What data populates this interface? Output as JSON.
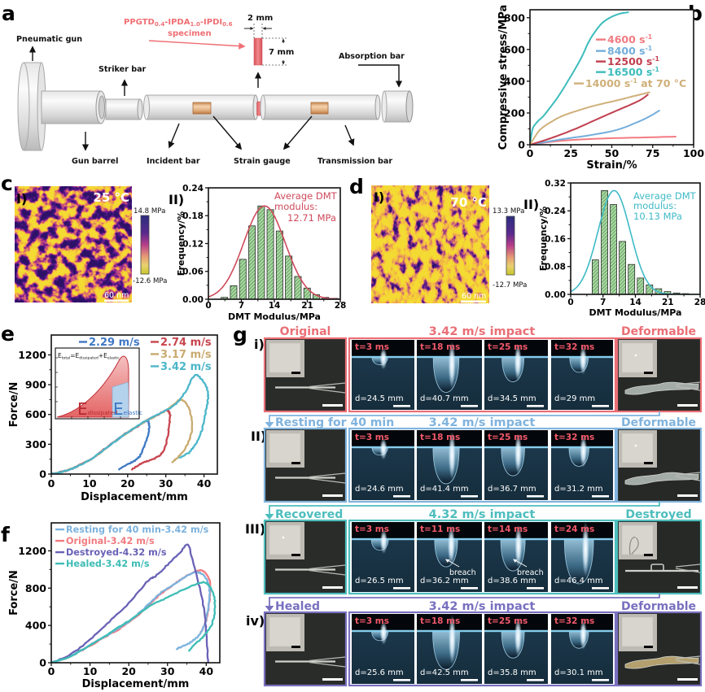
{
  "figure": {
    "panel_letters": {
      "a": "a",
      "b": "b",
      "c": "c",
      "d": "d",
      "e": "e",
      "f": "f",
      "g": "g"
    }
  },
  "panel_a": {
    "specimen_formula": [
      "PPGTD",
      "0.4",
      "-IPDA",
      "1.0",
      "-IPDI",
      "0.6"
    ],
    "specimen_word": "specimen",
    "width_dim": "2 mm",
    "height_dim": "7 mm",
    "labels": {
      "pneumatic_gun": "Pneumatic gun",
      "striker_bar": "Striker bar",
      "absorption_bar": "Absorption bar",
      "gun_barrel": "Gun barrel",
      "incident_bar": "Incident bar",
      "strain_gauge": "Strain gauge",
      "transmission_bar": "Transmission bar"
    },
    "specimen_color": "#ef7373",
    "gauge_color": "#d9a06a"
  },
  "panel_c": {
    "image_label": "I)",
    "temperature": "25 °C",
    "colorbar_max": "14.8 MPa",
    "colorbar_min": "-12.6 MPa",
    "scalebar": "60 nm",
    "hist_label": "II)"
  },
  "panel_d": {
    "image_label": "I)",
    "temperature": "70 °C",
    "colorbar_max": "13.3 MPa",
    "colorbar_min": "-12.7 MPa",
    "scalebar": "60 nm",
    "hist_label": "II)"
  },
  "panel_e": {
    "inset": {
      "equation": [
        "E",
        "total",
        "=E",
        "dissipated",
        "+E",
        "elastic"
      ],
      "dissipated_symbol": "E",
      "dissipated_sub": "dissipated",
      "elastic_symbol": "E",
      "elastic_sub": "elastic",
      "dissipated_color": "#c0323a",
      "elastic_color": "#3b78c4"
    }
  },
  "panel_g": {
    "time_color": "#f4596a",
    "rows": [
      {
        "roman": "i)",
        "color": "#ea6f76",
        "left_title": "Original",
        "center_title": "3.42 m/s impact",
        "right_title": "Deformable",
        "frames": [
          {
            "time": "t=3 ms",
            "depth": "d=24.5 mm",
            "depth_mm": 24.5
          },
          {
            "time": "t=18 ms",
            "depth": "d=40.7 mm",
            "depth_mm": 40.7
          },
          {
            "time": "t=25 ms",
            "depth": "d=34.5 mm",
            "depth_mm": 34.5
          },
          {
            "time": "t=32 ms",
            "depth": "d=29 mm",
            "depth_mm": 29
          }
        ]
      },
      {
        "roman": "II)",
        "color": "#80b3dd",
        "left_title": "Resting for 40 min",
        "center_title": "3.42 m/s impact",
        "right_title": "Deformable",
        "frames": [
          {
            "time": "t=3 ms",
            "depth": "d=24.6 mm",
            "depth_mm": 24.6
          },
          {
            "time": "t=18 ms",
            "depth": "d=41.4 mm",
            "depth_mm": 41.4
          },
          {
            "time": "t=25 ms",
            "depth": "d=36.7 mm",
            "depth_mm": 36.7
          },
          {
            "time": "t=32 ms",
            "depth": "d=31.2 mm",
            "depth_mm": 31.2
          }
        ]
      },
      {
        "roman": "III)",
        "color": "#4dbdbd",
        "left_title": "Recovered",
        "center_title": "4.32 m/s impact",
        "right_title": "Destroyed",
        "frames": [
          {
            "time": "t=3 ms",
            "depth": "d=26.5 mm",
            "depth_mm": 26.5
          },
          {
            "time": "t=11 ms",
            "depth": "d=36.2 mm",
            "depth_mm": 36.2,
            "note": "breach"
          },
          {
            "time": "t=14 ms",
            "depth": "d=38.6 mm",
            "depth_mm": 38.6,
            "note": "breach"
          },
          {
            "time": "t=24 ms",
            "depth": "d=46.4 mm",
            "depth_mm": 46.4
          }
        ]
      },
      {
        "roman": "iv)",
        "color": "#7870bf",
        "left_title": "Healed",
        "center_title": "3.42 m/s impact",
        "right_title": "Deformable",
        "frames": [
          {
            "time": "t=3 ms",
            "depth": "d=25.6 mm",
            "depth_mm": 25.6
          },
          {
            "time": "t=18 ms",
            "depth": "d=42.5 mm",
            "depth_mm": 42.5
          },
          {
            "time": "t=25 ms",
            "depth": "d=35.8 mm",
            "depth_mm": 35.8
          },
          {
            "time": "t=32 ms",
            "depth": "d=30.1 mm",
            "depth_mm": 30.1
          }
        ]
      }
    ]
  },
  "chart_data": [
    {
      "id": "b",
      "type": "line",
      "title": "",
      "xlabel": "Strain/%",
      "ylabel": "Compressive stress/MPa",
      "xlim": [
        0,
        100
      ],
      "ylim": [
        0,
        850
      ],
      "xticks": [
        0,
        25,
        50,
        75,
        100
      ],
      "xticklabels": [
        "0",
        "25",
        "50",
        "75",
        "100"
      ],
      "yticks": [
        0,
        200,
        400,
        600,
        800
      ],
      "yticklabels": [
        "0",
        "200",
        "400",
        "600",
        "800"
      ],
      "grid": false,
      "legend_position": "center-right",
      "series": [
        {
          "name": "4600 s",
          "sup": "-1",
          "suffix": "",
          "color": "#f27b82",
          "x": [
            0,
            19,
            44,
            70,
            89
          ],
          "y": [
            0,
            25,
            39,
            46,
            51
          ]
        },
        {
          "name": "8400 s",
          "sup": "-1",
          "suffix": "",
          "color": "#74aedb",
          "x": [
            0,
            19,
            36,
            53,
            66,
            73,
            79
          ],
          "y": [
            0,
            34,
            59,
            93,
            144,
            178,
            215
          ]
        },
        {
          "name": "12500 s",
          "sup": "-1",
          "suffix": "",
          "color": "#c13f4e",
          "x": [
            0,
            13,
            28,
            41,
            53,
            62,
            68,
            72
          ],
          "y": [
            0,
            42,
            101,
            161,
            215,
            255,
            285,
            315
          ]
        },
        {
          "name": "16500 s",
          "sup": "-1",
          "suffix": "",
          "color": "#3dbcbc",
          "x": [
            0,
            1,
            2,
            5,
            8,
            12,
            16,
            20,
            24,
            28,
            32,
            36,
            40,
            44,
            48,
            52,
            56,
            60
          ],
          "y": [
            0,
            70,
            110,
            150,
            178,
            230,
            285,
            347,
            415,
            485,
            560,
            650,
            715,
            765,
            795,
            815,
            828,
            834
          ]
        },
        {
          "name": "14000 s",
          "sup": "-1",
          "suffix": " at 70 °C",
          "color": "#cfb07a",
          "x": [
            0,
            3,
            6,
            10,
            13,
            19,
            28,
            39,
            53,
            63,
            73
          ],
          "y": [
            0,
            50,
            93,
            125,
            144,
            178,
            211,
            245,
            279,
            305,
            330
          ]
        }
      ]
    },
    {
      "id": "c_hist",
      "type": "bar",
      "title": "",
      "xlabel": "DMT Modulus/MPa",
      "ylabel": "Frequency/%",
      "xlim": [
        0,
        28
      ],
      "ylim": [
        0,
        0.24
      ],
      "xticks": [
        0,
        7,
        14,
        21,
        28
      ],
      "xticklabels": [
        "0",
        "7",
        "14",
        "21",
        "28"
      ],
      "yticks": [
        0,
        0.06,
        0.12,
        0.18,
        0.24
      ],
      "yticklabels": [
        "0.00",
        "0.06",
        "0.12",
        "0.18",
        "0.24"
      ],
      "bars": {
        "x": [
          3.4,
          5.35,
          7.3,
          9.25,
          11.2,
          13.15,
          15.1,
          17.05,
          19.0,
          20.95,
          22.9,
          24.85,
          26.8
        ],
        "values": [
          0.004,
          0.029,
          0.086,
          0.158,
          0.201,
          0.193,
          0.147,
          0.093,
          0.049,
          0.024,
          0.01,
          0.004,
          0.002
        ]
      },
      "fit": {
        "type": "gaussian",
        "mean": 11.9,
        "sigma": 4.4,
        "peak": 0.201,
        "color": "#cf4a5b"
      },
      "annotation": [
        "Average DMT",
        "modulus:",
        "12.71 MPa"
      ]
    },
    {
      "id": "d_hist",
      "type": "bar",
      "title": "",
      "xlabel": "DMT Modulus/MPa",
      "ylabel": "Frequency/%",
      "xlim": [
        0,
        28
      ],
      "ylim": [
        0,
        0.32
      ],
      "xticks": [
        0,
        7,
        14,
        21,
        28
      ],
      "xticklabels": [
        "0",
        "7",
        "14",
        "21",
        "28"
      ],
      "yticks": [
        0,
        0.08,
        0.16,
        0.24,
        0.32
      ],
      "yticklabels": [
        "0.00",
        "0.08",
        "0.16",
        "0.24",
        "0.32"
      ],
      "bars": {
        "x": [
          5.35,
          7.3,
          9.25,
          11.2,
          13.15,
          15.1,
          17.05,
          19.0,
          20.95,
          22.9,
          24.85
        ],
        "values": [
          0.099,
          0.298,
          0.258,
          0.152,
          0.086,
          0.047,
          0.027,
          0.016,
          0.008,
          0.004,
          0.002
        ]
      },
      "fit": {
        "type": "gaussian",
        "mean": 9.4,
        "sigma": 3.5,
        "peak": 0.298,
        "color": "#3fbac6"
      },
      "annotation": [
        "Average DMT",
        "modulus:",
        "10.13 MPa"
      ]
    },
    {
      "id": "e",
      "type": "line",
      "title": "",
      "xlabel": "Displacement/mm",
      "ylabel": "Force/N",
      "xlim": [
        0,
        43.5
      ],
      "ylim": [
        0,
        1400
      ],
      "xticks": [
        0,
        10,
        20,
        30,
        40
      ],
      "xticklabels": [
        "0",
        "10",
        "20",
        "30",
        "40"
      ],
      "yticks": [
        0,
        300,
        600,
        900,
        1200
      ],
      "yticklabels": [
        "0",
        "300",
        "600",
        "900",
        "1200"
      ],
      "grid": false,
      "legend_position": "top-right",
      "series": [
        {
          "name": "2.29 m/s",
          "color": "#3f78c4",
          "x": [
            0,
            2,
            5,
            10,
            15,
            20,
            23,
            25.2,
            25.6,
            25.4,
            24.5,
            23.3,
            22,
            20.5,
            17.7
          ],
          "y": [
            0,
            15,
            50,
            140,
            280,
            420,
            490,
            535,
            500,
            414,
            290,
            190,
            140,
            108,
            50
          ]
        },
        {
          "name": "2.74 m/s",
          "color": "#c8454e",
          "x": [
            0,
            2,
            5,
            10,
            15,
            20,
            25,
            28,
            30,
            30.8,
            31.1,
            30.9,
            30.2,
            29,
            27.5,
            25.4,
            23,
            21.2
          ],
          "y": [
            0,
            15,
            50,
            140,
            280,
            420,
            540,
            600,
            640,
            630,
            580,
            480,
            330,
            215,
            165,
            132,
            95,
            50
          ]
        },
        {
          "name": "3.17 m/s",
          "color": "#c9ab70",
          "x": [
            0,
            2,
            5,
            10,
            15,
            20,
            25,
            30,
            33.6,
            35.5,
            36.6,
            36.9,
            36.3,
            35.3,
            33.5,
            31.8
          ],
          "y": [
            0,
            15,
            50,
            140,
            280,
            420,
            540,
            640,
            745,
            700,
            600,
            470,
            360,
            273,
            180,
            124
          ]
        },
        {
          "name": "3.42 m/s",
          "color": "#4cb6c9",
          "x": [
            0,
            2,
            5,
            10,
            15,
            20,
            25,
            30,
            33,
            35,
            37.5,
            39.5,
            41,
            41,
            40.6,
            39.8,
            38.9,
            37.5,
            36,
            33.6
          ],
          "y": [
            0,
            15,
            50,
            140,
            280,
            420,
            540,
            640,
            720,
            820,
            990,
            950,
            840,
            740,
            662,
            500,
            381,
            290,
            215,
            165
          ]
        }
      ]
    },
    {
      "id": "f",
      "type": "line",
      "title": "",
      "xlabel": "Displacement/mm",
      "ylabel": "Force/N",
      "xlim": [
        0,
        43.5
      ],
      "ylim": [
        0,
        1500
      ],
      "xticks": [
        0,
        10,
        20,
        30,
        40
      ],
      "xticklabels": [
        "0",
        "10",
        "20",
        "30",
        "40"
      ],
      "yticks": [
        0,
        400,
        800,
        1200
      ],
      "yticklabels": [
        "0",
        "400",
        "800",
        "1200"
      ],
      "grid": false,
      "legend_position": "top-left",
      "series": [
        {
          "name": "Resting for 40 min-3.42 m/s",
          "color": "#7cb2dd",
          "x": [
            0,
            5,
            10,
            15,
            20,
            25,
            28,
            32,
            35,
            37.5,
            39.5,
            40.8,
            40.5,
            39.5,
            38,
            36,
            34,
            32.5
          ],
          "y": [
            0,
            70,
            190,
            310,
            440,
            620,
            740,
            850,
            930,
            970,
            930,
            800,
            600,
            400,
            290,
            220,
            180,
            150
          ]
        },
        {
          "name": "Original-3.42 m/s",
          "color": "#f27b80",
          "x": [
            0,
            5,
            10,
            15,
            20,
            25,
            28,
            32,
            35,
            38,
            39.8,
            41,
            40.8,
            40,
            38.5
          ],
          "y": [
            0,
            70,
            185,
            300,
            430,
            610,
            730,
            850,
            935,
            990,
            960,
            850,
            650,
            450,
            320
          ]
        },
        {
          "name": "Destroyed-4.32 m/s",
          "color": "#6a62b6",
          "x": [
            0,
            5,
            10,
            15,
            20,
            25,
            27,
            30,
            33,
            35.2,
            36.5,
            38,
            39.5,
            40,
            40.5
          ],
          "y": [
            0,
            90,
            250,
            440,
            640,
            880,
            930,
            1050,
            1170,
            1265,
            1100,
            850,
            550,
            300,
            0
          ]
        },
        {
          "name": "Healed-3.42 m/s",
          "color": "#3ebdb5",
          "x": [
            0,
            5,
            10,
            15,
            20,
            26,
            30,
            35,
            38.7,
            40.5,
            42,
            42.2,
            41.5,
            40,
            38.5,
            35.5
          ],
          "y": [
            0,
            70,
            190,
            320,
            450,
            620,
            700,
            800,
            860,
            840,
            720,
            560,
            420,
            320,
            250,
            130
          ]
        }
      ]
    }
  ]
}
